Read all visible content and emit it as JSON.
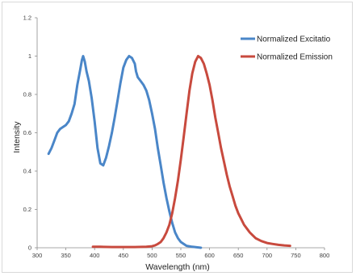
{
  "chart_data": {
    "type": "line",
    "title": "",
    "xlabel": "Wavelength (nm)",
    "ylabel": "Intensity",
    "xlim": [
      300,
      800
    ],
    "ylim": [
      0,
      1.2
    ],
    "x_ticks": [
      "300",
      "350",
      "400",
      "450",
      "500",
      "550",
      "600",
      "650",
      "700",
      "750",
      "800"
    ],
    "y_ticks": [
      "0",
      "0.2",
      "0.4",
      "0.6",
      "0.8",
      "1",
      "1.2"
    ],
    "grid": false,
    "legend": "top-right",
    "series": [
      {
        "name": "Normalized Excitatio",
        "color": "#4a86c8",
        "points": [
          [
            320,
            0.49
          ],
          [
            325,
            0.52
          ],
          [
            330,
            0.56
          ],
          [
            335,
            0.6
          ],
          [
            340,
            0.62
          ],
          [
            345,
            0.63
          ],
          [
            350,
            0.64
          ],
          [
            355,
            0.66
          ],
          [
            360,
            0.7
          ],
          [
            365,
            0.75
          ],
          [
            370,
            0.85
          ],
          [
            375,
            0.93
          ],
          [
            378,
            0.98
          ],
          [
            380,
            1.0
          ],
          [
            383,
            0.97
          ],
          [
            386,
            0.92
          ],
          [
            390,
            0.87
          ],
          [
            395,
            0.78
          ],
          [
            400,
            0.66
          ],
          [
            405,
            0.52
          ],
          [
            410,
            0.44
          ],
          [
            415,
            0.43
          ],
          [
            420,
            0.47
          ],
          [
            425,
            0.53
          ],
          [
            430,
            0.6
          ],
          [
            435,
            0.68
          ],
          [
            440,
            0.77
          ],
          [
            445,
            0.86
          ],
          [
            450,
            0.94
          ],
          [
            455,
            0.98
          ],
          [
            460,
            1.0
          ],
          [
            465,
            0.99
          ],
          [
            470,
            0.96
          ],
          [
            472,
            0.92
          ],
          [
            475,
            0.89
          ],
          [
            480,
            0.87
          ],
          [
            485,
            0.85
          ],
          [
            490,
            0.82
          ],
          [
            495,
            0.77
          ],
          [
            500,
            0.7
          ],
          [
            505,
            0.62
          ],
          [
            510,
            0.52
          ],
          [
            515,
            0.43
          ],
          [
            520,
            0.34
          ],
          [
            525,
            0.26
          ],
          [
            530,
            0.19
          ],
          [
            535,
            0.13
          ],
          [
            540,
            0.08
          ],
          [
            545,
            0.05
          ],
          [
            550,
            0.03
          ],
          [
            560,
            0.01
          ],
          [
            570,
            0.005
          ],
          [
            585,
            0.0
          ]
        ]
      },
      {
        "name": "Normalized Emission",
        "color": "#c84a3e",
        "points": [
          [
            397,
            0.005
          ],
          [
            410,
            0.005
          ],
          [
            430,
            0.004
          ],
          [
            450,
            0.004
          ],
          [
            470,
            0.004
          ],
          [
            490,
            0.005
          ],
          [
            500,
            0.008
          ],
          [
            505,
            0.012
          ],
          [
            510,
            0.02
          ],
          [
            515,
            0.03
          ],
          [
            520,
            0.05
          ],
          [
            525,
            0.08
          ],
          [
            530,
            0.12
          ],
          [
            535,
            0.18
          ],
          [
            540,
            0.26
          ],
          [
            545,
            0.35
          ],
          [
            550,
            0.46
          ],
          [
            555,
            0.58
          ],
          [
            560,
            0.7
          ],
          [
            565,
            0.82
          ],
          [
            570,
            0.91
          ],
          [
            575,
            0.97
          ],
          [
            580,
            1.0
          ],
          [
            585,
            0.99
          ],
          [
            590,
            0.96
          ],
          [
            595,
            0.91
          ],
          [
            600,
            0.85
          ],
          [
            605,
            0.77
          ],
          [
            610,
            0.68
          ],
          [
            615,
            0.6
          ],
          [
            620,
            0.52
          ],
          [
            625,
            0.45
          ],
          [
            630,
            0.38
          ],
          [
            635,
            0.32
          ],
          [
            640,
            0.27
          ],
          [
            645,
            0.22
          ],
          [
            650,
            0.18
          ],
          [
            655,
            0.15
          ],
          [
            660,
            0.12
          ],
          [
            665,
            0.1
          ],
          [
            670,
            0.08
          ],
          [
            675,
            0.065
          ],
          [
            680,
            0.05
          ],
          [
            690,
            0.035
          ],
          [
            700,
            0.025
          ],
          [
            710,
            0.02
          ],
          [
            720,
            0.015
          ],
          [
            730,
            0.012
          ],
          [
            740,
            0.01
          ]
        ]
      }
    ]
  }
}
